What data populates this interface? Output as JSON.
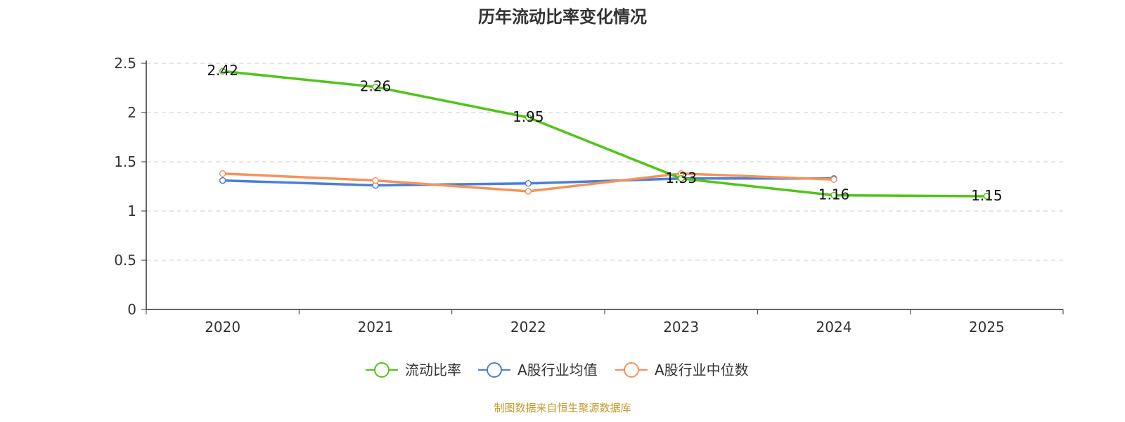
{
  "chart_data": {
    "type": "line",
    "title": "历年流动比率变化情况",
    "categories": [
      "2020",
      "2021",
      "2022",
      "2023",
      "2024",
      "2025"
    ],
    "ylim": [
      0,
      2.5
    ],
    "yticks": [
      "0",
      "0.5",
      "1",
      "1.5",
      "2",
      "2.5"
    ],
    "grid": true,
    "legend_position": "bottom-center",
    "series": [
      {
        "name": "流动比率",
        "color": "#52c41a",
        "values": [
          2.42,
          2.26,
          1.95,
          1.33,
          1.16,
          1.15
        ],
        "labels": [
          "2.42",
          "2.26",
          "1.95",
          "1.33",
          "1.16",
          "1.15"
        ]
      },
      {
        "name": "A股行业均值",
        "color": "#4a7fdc",
        "values": [
          1.31,
          1.26,
          1.28,
          1.33,
          1.33,
          null
        ]
      },
      {
        "name": "A股行业中位数",
        "color": "#f5935a",
        "values": [
          1.38,
          1.31,
          1.2,
          1.38,
          1.32,
          null
        ]
      }
    ]
  },
  "footer": {
    "source": "制图数据来自恒生聚源数据库"
  }
}
